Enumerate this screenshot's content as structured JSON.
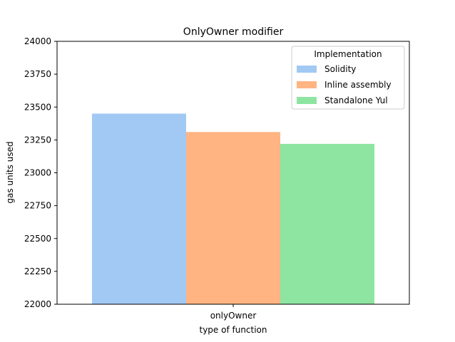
{
  "chart_data": {
    "type": "bar",
    "title": "OnlyOwner modifier",
    "xlabel": "type of function",
    "ylabel": "gas units used",
    "categories": [
      "onlyOwner"
    ],
    "ylim": [
      22000,
      24000
    ],
    "yticks": [
      22000,
      22250,
      22500,
      22750,
      23000,
      23250,
      23500,
      23750,
      24000
    ],
    "series": [
      {
        "name": "Solidity",
        "values": [
          23450
        ],
        "color": "#a1c9f4"
      },
      {
        "name": "Inline assembly",
        "values": [
          23310
        ],
        "color": "#ffb482"
      },
      {
        "name": "Standalone Yul",
        "values": [
          23220
        ],
        "color": "#8de5a1"
      }
    ],
    "legend": {
      "title": "Implementation",
      "position": "top-right"
    },
    "grid": false
  }
}
